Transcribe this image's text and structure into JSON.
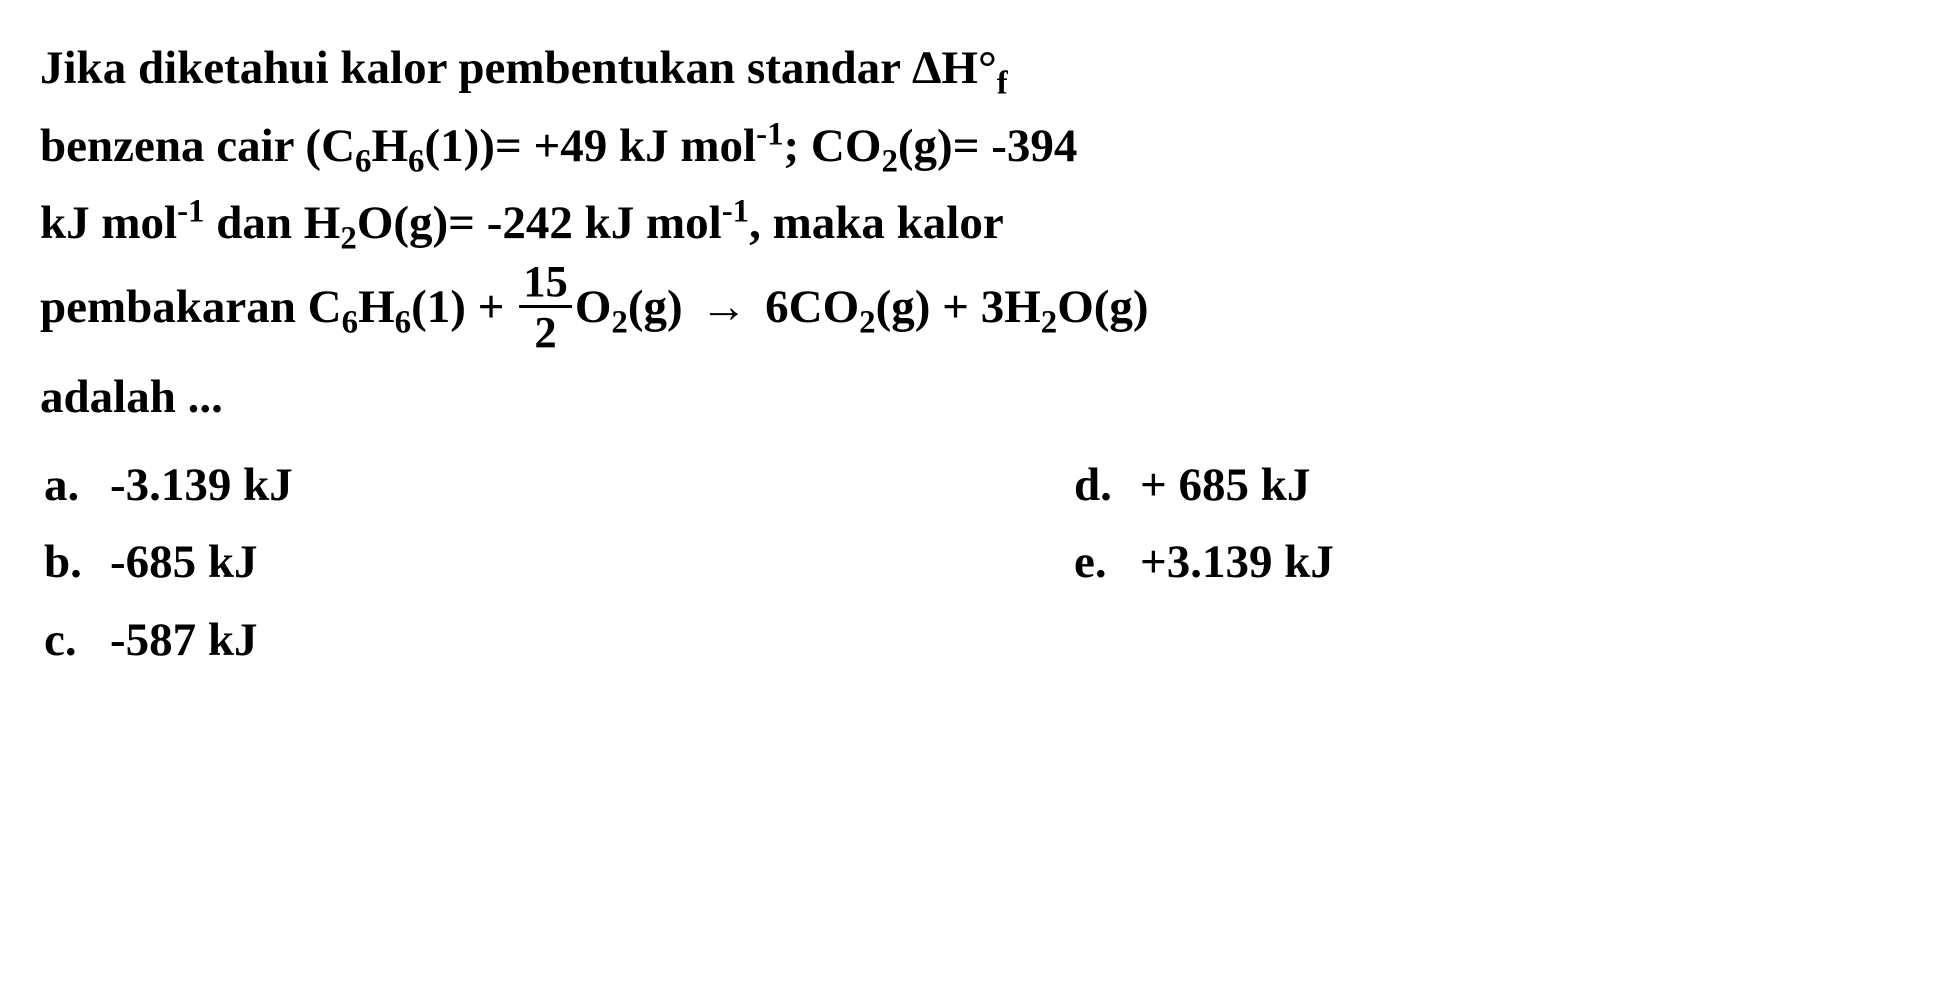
{
  "question": {
    "line1_pre": "Jika diketahui kalor pembentukan standar ",
    "deltaH": "ΔH°",
    "deltaH_sub": "f",
    "line2_pre": "benzena cair (C",
    "benzene_c_sub": "6",
    "benzene_h": "H",
    "benzene_h_sub": "6",
    "benzene_state": "(1))= +49 kJ mol",
    "exp_neg1_a": "-1",
    "semicolon": "; CO",
    "co2_sub": "2",
    "co2_state": "(g)= -394",
    "line3_pre": "kJ mol",
    "exp_neg1_b": "-1",
    "line3_mid": " dan H",
    "h2o_sub": "2",
    "h2o_mid": "O(g)= -242 kJ mol",
    "exp_neg1_c": "-1",
    "line3_end": ", maka kalor",
    "line4_pre": "pembakaran C",
    "r_c_sub": "6",
    "r_h": "H",
    "r_h_sub": "6",
    "r_state1": "(1) + ",
    "frac_num": "15",
    "frac_den": "2",
    "r_o": "O",
    "r_o_sub": "2",
    "r_o_state": "(g) ",
    "arrow": "→",
    "r_prod1": " 6CO",
    "r_prod1_sub": "2",
    "r_prod1_state": "(g) + 3H",
    "r_prod2_sub": "2",
    "r_prod2_end": "O(g)",
    "line5": "adalah ..."
  },
  "options": {
    "a": {
      "letter": "a.",
      "text": "-3.139 kJ"
    },
    "b": {
      "letter": "b.",
      "text": "-685 kJ"
    },
    "c": {
      "letter": "c.",
      "text": "-587 kJ"
    },
    "d": {
      "letter": "d.",
      "text": "+ 685 kJ"
    },
    "e": {
      "letter": "e.",
      "text": "+3.139 kJ"
    }
  },
  "style": {
    "font_size_pt": 35,
    "font_weight": "bold",
    "text_color": "#000000",
    "background_color": "#ffffff",
    "font_family": "Times New Roman"
  }
}
